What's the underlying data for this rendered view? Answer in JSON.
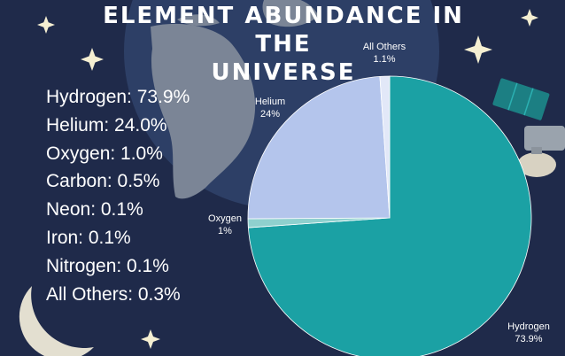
{
  "title": {
    "line1": "ELEMENT ABUNDANCE IN THE",
    "line2": "UNIVERSE"
  },
  "stats": [
    "Hydrogen: 73.9%",
    "Helium: 24.0%",
    "Oxygen: 1.0%",
    "Carbon: 0.5%",
    "Neon: 0.1%",
    "Iron: 0.1%",
    "Nitrogen: 0.1%",
    "All Others: 0.3%"
  ],
  "chart_data": {
    "type": "pie",
    "title": "ELEMENT ABUNDANCE IN THE UNIVERSE",
    "slices": [
      {
        "label": "Hydrogen",
        "value_label": "73.9%",
        "value": 73.9,
        "color": "#1ba1a4"
      },
      {
        "label": "Oxygen",
        "value_label": "1%",
        "value": 1.0,
        "color": "#8fd0ce"
      },
      {
        "label": "Helium",
        "value_label": "24%",
        "value": 24.0,
        "color": "#b4c5ec"
      },
      {
        "label": "All Others",
        "value_label": "1.1%",
        "value": 1.1,
        "color": "#e2e8f8"
      }
    ]
  },
  "colors": {
    "background": "#1f2a4a",
    "globe": "#2d3f66",
    "land": "#7b8596",
    "star": "#f5efd2"
  },
  "decorations": [
    "earth-globe",
    "crescent-moon",
    "satellite",
    "stars"
  ]
}
